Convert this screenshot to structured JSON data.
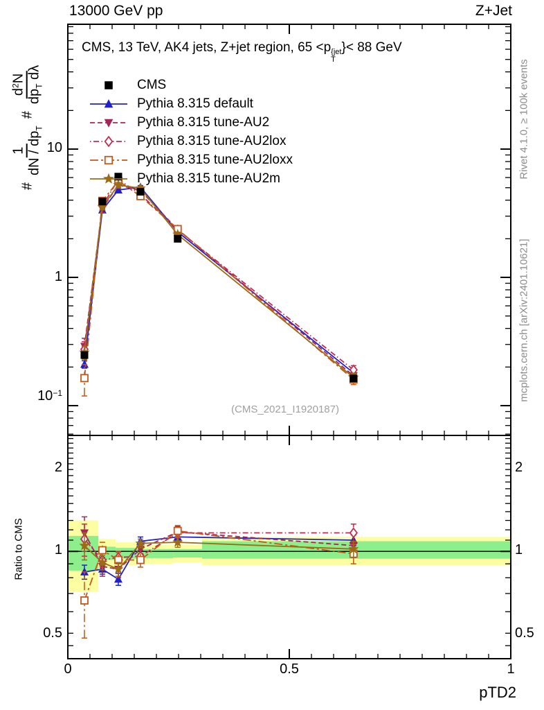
{
  "header": {
    "left": "13000 GeV pp",
    "right": "Z+Jet"
  },
  "panel_title": {
    "prefix": "CMS, 13 TeV, AK4 jets, Z+jet region, 65 <p",
    "sup": "{jet",
    "sub": "T",
    "suffix": "}< 88 GeV"
  },
  "watermark": "(CMS_2021_I1920187)",
  "side_notes": {
    "top": "Rivet 4.1.0, ≥ 100k events",
    "bottom": "mcplots.cern.ch [arXiv:2401.10621]"
  },
  "y_axis_label": {
    "hash1": "#",
    "f1_num": "1",
    "f1_den_a": "dN / dp",
    "f1_den_sub": "T",
    "hash2": "#",
    "f2_num_a": "d",
    "f2_num_sup": "2",
    "f2_num_b": "N",
    "f2_den_a": "dp",
    "f2_den_sub": "T",
    "f2_den_b": " dλ"
  },
  "axis_labels": {
    "main_y_10": "10",
    "main_y_1": "1",
    "main_y_m1_base": "10",
    "main_y_m1_exp": "−1",
    "ratio_2": "2",
    "ratio_1": "1",
    "ratio_05": "0.5",
    "x_0": "0",
    "x_05": "0.5",
    "x_1": "1",
    "x_title": "pTD2",
    "ratio_y_title": "Ratio to CMS"
  },
  "colors": {
    "cms": "#000000",
    "default": "#2020cc",
    "au2": "#a62558",
    "au2lox": "#c5294e",
    "au2loxx": "#c4571a",
    "au2m": "#9c6b16",
    "band_yellow": "#fdfda1",
    "band_green": "#8cef8c"
  },
  "chart_data": [
    {
      "type": "line",
      "title": "CMS, 13 TeV, AK4 jets, Z+jet region, 65 < pT{jet} < 88 GeV",
      "xlabel": "pTD2",
      "ylabel": "# 1/(dN/dpT) d2N/(dpT dλ)",
      "yscale": "log",
      "xlim": [
        0,
        1
      ],
      "ylim": [
        0.0586,
        94
      ],
      "legend_position": "top-left",
      "x": [
        0.0375,
        0.078,
        0.114,
        0.164,
        0.248,
        0.645
      ],
      "series": [
        {
          "label": "CMS",
          "color": "#000000",
          "marker": "square",
          "filled": true,
          "line": "none",
          "values": [
            0.248,
            3.9,
            6.1,
            4.65,
            2.0,
            0.163
          ],
          "err": [
            0.012,
            0.1,
            0.15,
            0.12,
            0.06,
            0.006
          ]
        },
        {
          "label": "Pythia 8.315 default",
          "color": "#2020cc",
          "marker": "triangle-up",
          "filled": true,
          "line": "solid",
          "values": [
            0.21,
            3.35,
            4.8,
            5.05,
            2.26,
            0.18
          ],
          "err": [
            0.014,
            0.1,
            0.15,
            0.15,
            0.07,
            0.009
          ]
        },
        {
          "label": "Pythia 8.315 tune-AU2",
          "color": "#a62558",
          "marker": "triangle-down",
          "filled": true,
          "line": "dashed",
          "values": [
            0.29,
            3.45,
            5.25,
            4.75,
            2.36,
            0.171
          ],
          "err": [
            0.045,
            0.25,
            0.3,
            0.25,
            0.12,
            0.016
          ]
        },
        {
          "label": "Pythia 8.315 tune-AU2lox",
          "color": "#c5294e",
          "marker": "diamond",
          "filled": false,
          "line": "dashdot",
          "values": [
            0.275,
            3.6,
            5.8,
            4.45,
            2.34,
            0.19
          ],
          "err": [
            0.04,
            0.22,
            0.28,
            0.22,
            0.11,
            0.015
          ]
        },
        {
          "label": "Pythia 8.315 tune-AU2loxx",
          "color": "#c4571a",
          "marker": "square",
          "filled": false,
          "line": "longdashdot",
          "values": [
            0.164,
            3.95,
            5.65,
            4.3,
            2.38,
            0.16
          ],
          "err": [
            0.045,
            0.25,
            0.3,
            0.24,
            0.12,
            0.014
          ]
        },
        {
          "label": "Pythia 8.315 tune-AU2m",
          "color": "#9c6b16",
          "marker": "star",
          "filled": true,
          "line": "solid",
          "values": [
            0.26,
            3.55,
            5.25,
            4.95,
            2.16,
            0.166
          ],
          "err": [
            0.03,
            0.18,
            0.25,
            0.2,
            0.09,
            0.012
          ]
        }
      ]
    },
    {
      "type": "line",
      "title": "Ratio to CMS",
      "yscale": "log",
      "xlim": [
        0,
        1
      ],
      "ylim": [
        0.403,
        2.67
      ],
      "ref_line": 1,
      "bands": {
        "edges": [
          0,
          0.069,
          0.108,
          0.156,
          0.238,
          0.303,
          1.0
        ],
        "yellow": [
          [
            0.71,
            1.3
          ],
          [
            0.87,
            1.11
          ],
          [
            0.89,
            1.08
          ],
          [
            0.9,
            1.06
          ],
          [
            0.91,
            1.06
          ],
          [
            0.89,
            1.13
          ]
        ],
        "green": [
          [
            0.85,
            1.14
          ],
          [
            0.93,
            1.04
          ],
          [
            0.94,
            1.03
          ],
          [
            0.945,
            1.02
          ],
          [
            0.95,
            1.02
          ],
          [
            0.94,
            1.09
          ]
        ]
      },
      "x": [
        0.0375,
        0.078,
        0.114,
        0.164,
        0.248,
        0.645
      ],
      "series": [
        {
          "label": "Pythia 8.315 default",
          "color": "#2020cc",
          "marker": "triangle-up",
          "filled": true,
          "line": "solid",
          "values": [
            0.84,
            0.86,
            0.79,
            1.09,
            1.13,
            1.1
          ],
          "err": [
            0.05,
            0.035,
            0.04,
            0.04,
            0.035,
            0.05
          ]
        },
        {
          "label": "Pythia 8.315 tune-AU2",
          "color": "#a62558",
          "marker": "triangle-down",
          "filled": true,
          "line": "dashed",
          "values": [
            1.17,
            0.88,
            0.86,
            1.02,
            1.18,
            1.05
          ],
          "err": [
            0.17,
            0.07,
            0.06,
            0.05,
            0.055,
            0.1
          ]
        },
        {
          "label": "Pythia 8.315 tune-AU2lox",
          "color": "#c5294e",
          "marker": "diamond",
          "filled": false,
          "line": "dashdot",
          "values": [
            1.11,
            0.93,
            0.95,
            0.96,
            1.17,
            1.17
          ],
          "err": [
            0.15,
            0.06,
            0.05,
            0.05,
            0.05,
            0.09
          ]
        },
        {
          "label": "Pythia 8.315 tune-AU2loxx",
          "color": "#c4571a",
          "marker": "square",
          "filled": false,
          "line": "longdashdot",
          "values": [
            0.66,
            1.01,
            0.93,
            0.93,
            1.19,
            0.98
          ],
          "err": [
            0.18,
            0.07,
            0.06,
            0.055,
            0.055,
            0.08
          ]
        },
        {
          "label": "Pythia 8.315 tune-AU2m",
          "color": "#9c6b16",
          "marker": "star",
          "filled": true,
          "line": "solid",
          "values": [
            1.05,
            0.91,
            0.86,
            1.07,
            1.08,
            1.02
          ],
          "err": [
            0.12,
            0.055,
            0.05,
            0.04,
            0.045,
            0.07
          ]
        }
      ]
    }
  ]
}
